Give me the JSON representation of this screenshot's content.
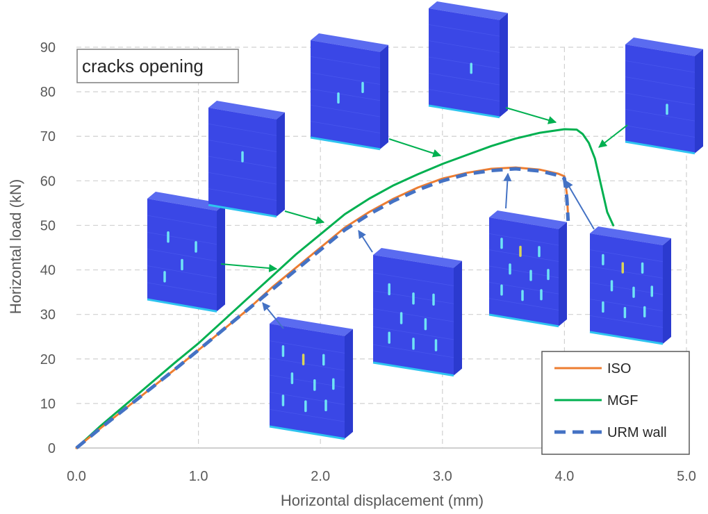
{
  "chart_data": {
    "type": "line",
    "title": "",
    "xlabel": "Horizontal displacement (mm)",
    "ylabel": "Horizontal load (kN)",
    "xlim": [
      0,
      5
    ],
    "ylim": [
      0,
      90
    ],
    "xticks": [
      "0.0",
      "1.0",
      "2.0",
      "3.0",
      "4.0",
      "5.0"
    ],
    "yticks": [
      "0",
      "10",
      "20",
      "30",
      "40",
      "50",
      "60",
      "70",
      "80",
      "90"
    ],
    "grid": true,
    "legend_position": "bottom-right",
    "annotation": "cracks opening",
    "series": [
      {
        "name": "ISO",
        "color": "#ED7D31",
        "style": "solid",
        "points": [
          [
            0,
            0
          ],
          [
            0.2,
            4.5
          ],
          [
            0.5,
            11
          ],
          [
            0.8,
            17.5
          ],
          [
            1.0,
            22
          ],
          [
            1.2,
            26.5
          ],
          [
            1.4,
            31
          ],
          [
            1.6,
            36
          ],
          [
            1.8,
            40.5
          ],
          [
            2.0,
            45
          ],
          [
            2.2,
            49.5
          ],
          [
            2.4,
            53
          ],
          [
            2.6,
            56
          ],
          [
            2.8,
            58.5
          ],
          [
            3.0,
            60.5
          ],
          [
            3.2,
            61.8
          ],
          [
            3.4,
            62.7
          ],
          [
            3.6,
            63
          ],
          [
            3.8,
            62.5
          ],
          [
            3.95,
            61.6
          ],
          [
            4.0,
            61
          ],
          [
            4.02,
            57
          ],
          [
            4.03,
            52
          ]
        ]
      },
      {
        "name": "MGF",
        "color": "#00B050",
        "style": "solid",
        "points": [
          [
            0,
            0
          ],
          [
            0.2,
            5
          ],
          [
            0.5,
            12
          ],
          [
            0.8,
            19
          ],
          [
            1.0,
            23.5
          ],
          [
            1.2,
            28.5
          ],
          [
            1.4,
            33.5
          ],
          [
            1.6,
            38.5
          ],
          [
            1.8,
            43.5
          ],
          [
            2.0,
            48
          ],
          [
            2.2,
            52.5
          ],
          [
            2.4,
            56
          ],
          [
            2.6,
            59
          ],
          [
            2.8,
            61.5
          ],
          [
            3.0,
            63.8
          ],
          [
            3.2,
            65.8
          ],
          [
            3.4,
            67.8
          ],
          [
            3.6,
            69.5
          ],
          [
            3.8,
            70.8
          ],
          [
            4.0,
            71.6
          ],
          [
            4.1,
            71.5
          ],
          [
            4.15,
            70.5
          ],
          [
            4.2,
            68.5
          ],
          [
            4.25,
            65
          ],
          [
            4.3,
            59
          ],
          [
            4.35,
            53
          ],
          [
            4.4,
            50
          ]
        ]
      },
      {
        "name": "URM wall",
        "color": "#4472C4",
        "style": "dashed",
        "points": [
          [
            0,
            0
          ],
          [
            0.2,
            4.5
          ],
          [
            0.5,
            11
          ],
          [
            0.8,
            17.5
          ],
          [
            1.0,
            22
          ],
          [
            1.2,
            26.5
          ],
          [
            1.4,
            31
          ],
          [
            1.6,
            35.5
          ],
          [
            1.8,
            40
          ],
          [
            2.0,
            44.5
          ],
          [
            2.2,
            49
          ],
          [
            2.4,
            52.5
          ],
          [
            2.6,
            55.5
          ],
          [
            2.8,
            58
          ],
          [
            3.0,
            60
          ],
          [
            3.2,
            61.5
          ],
          [
            3.4,
            62.3
          ],
          [
            3.6,
            62.7
          ],
          [
            3.8,
            62.2
          ],
          [
            3.95,
            61.2
          ],
          [
            4.0,
            60.5
          ],
          [
            4.02,
            56
          ],
          [
            4.03,
            51
          ]
        ]
      }
    ]
  },
  "colors": {
    "wall_front": "#3A47E6",
    "wall_side": "#2B3ACF",
    "wall_top": "#5A6BF0",
    "wall_base": "#2EC4F0",
    "crack_light": "#6FE3F5",
    "crack_yellow": "#D9D45A",
    "arrow_green": "#00B050",
    "arrow_blue": "#4472C4"
  },
  "icons": {
    "wall": "masonry-wall-deformed-icon",
    "arrow": "pointer-arrow-icon"
  }
}
